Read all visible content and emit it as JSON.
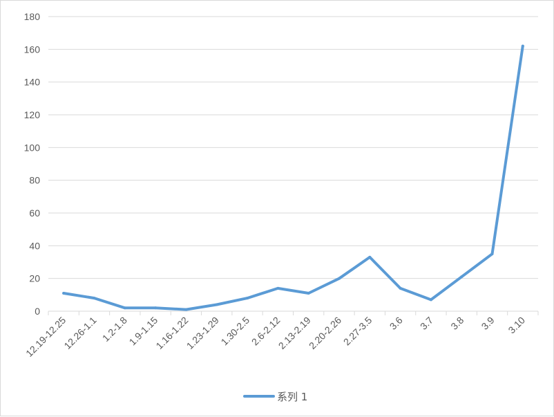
{
  "chart_data": {
    "type": "line",
    "title": "",
    "xlabel": "",
    "ylabel": "",
    "categories": [
      "12.19-12.25",
      "12.26-1.1",
      "1.2-1.8",
      "1.9-1.15",
      "1.16-1.22",
      "1.23-1.29",
      "1.30-2.5",
      "2.6-2.12",
      "2.13-2.19",
      "2.20-2.26",
      "2.27-3.5",
      "3.6",
      "3.7",
      "3.8",
      "3.9",
      "3.10"
    ],
    "series": [
      {
        "name": "系列 1",
        "values": [
          11,
          8,
          2,
          2,
          1,
          4,
          8,
          14,
          11,
          20,
          33,
          14,
          7,
          21,
          35,
          162
        ],
        "color": "#5b9bd5"
      }
    ],
    "ylim": [
      0,
      180
    ],
    "yticks": [
      0,
      20,
      40,
      60,
      80,
      100,
      120,
      140,
      160,
      180
    ],
    "grid": true,
    "legend_position": "bottom"
  }
}
